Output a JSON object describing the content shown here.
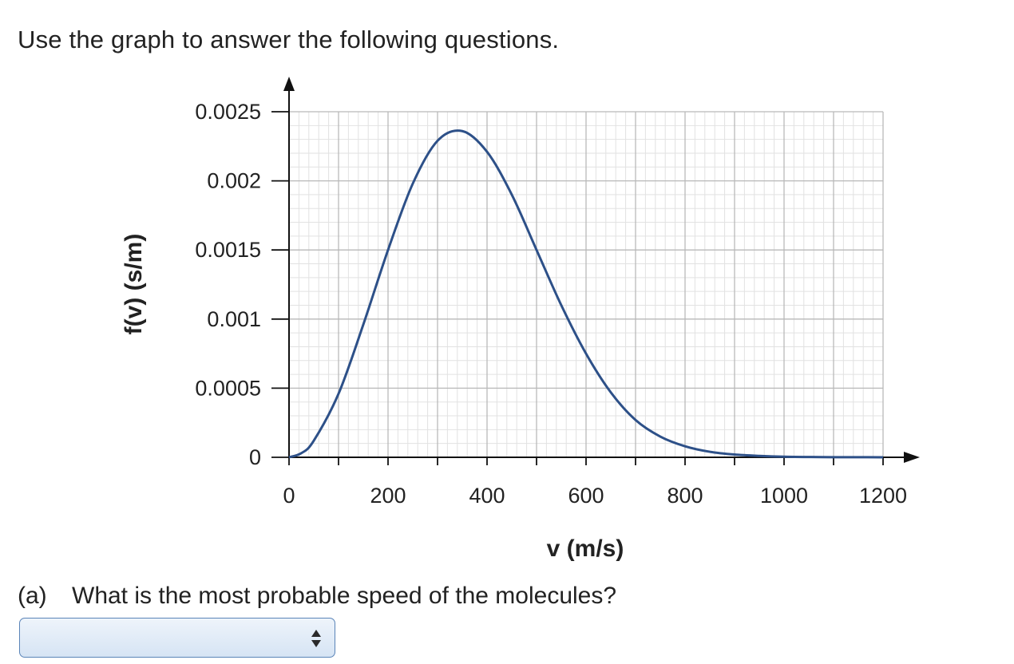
{
  "prompt": "Use the graph to answer the following questions.",
  "chart_data": {
    "type": "line",
    "xlabel": "v (m/s)",
    "ylabel": "f(v) (s/m)",
    "xlim": [
      0,
      1200
    ],
    "ylim": [
      0,
      0.0025
    ],
    "x_ticks": [
      0,
      200,
      400,
      600,
      800,
      1000,
      1200
    ],
    "x_tick_labels": [
      "0",
      "200",
      "400",
      "600",
      "800",
      "1000",
      "1200"
    ],
    "y_ticks": [
      0,
      0.0005,
      0.001,
      0.0015,
      0.002,
      0.0025
    ],
    "y_tick_labels": [
      "0",
      "0.0005",
      "0.001",
      "0.0015",
      "0.002",
      "0.0025"
    ],
    "grid": true,
    "line_color": "#2d5088",
    "series": [
      {
        "x": [
          0,
          25,
          50,
          100,
          150,
          200,
          250,
          300,
          350,
          400,
          450,
          500,
          550,
          600,
          650,
          700,
          750,
          800,
          850,
          900,
          950,
          1000,
          1050,
          1100,
          1150,
          1200
        ],
        "y": [
          0,
          3e-05,
          0.00012,
          0.00046,
          0.00096,
          0.0015,
          0.00198,
          0.00229,
          0.00236,
          0.00221,
          0.0019,
          0.0015,
          0.0011,
          0.00075,
          0.00047,
          0.00027,
          0.00015,
          8e-05,
          4e-05,
          2e-05,
          1e-05,
          4e-06,
          2e-06,
          1e-06,
          5e-07,
          2e-07
        ]
      }
    ]
  },
  "question": {
    "letter": "(a)",
    "text": "What is the most probable speed of the molecules?",
    "select_value": ""
  }
}
